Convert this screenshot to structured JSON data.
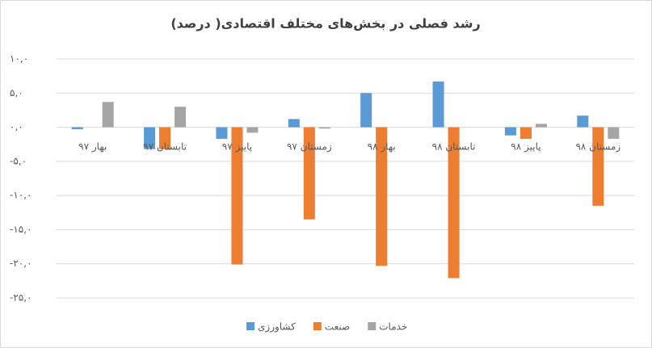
{
  "chart_data": {
    "type": "bar",
    "title": "رشد فصلی در بخش‌های مختلف اقتصادی( درصد)",
    "categories": [
      "بهار ۹۷",
      "تابستان ۹۷",
      "پاییز ۹۷",
      "زمستان ۹۷",
      "بهار ۹۸",
      "تابستان ۹۸",
      "پاییز ۹۸",
      "زمستان ۹۸"
    ],
    "series": [
      {
        "name": "کشاورزی",
        "color": "#5b9bd5",
        "values": [
          -0.3,
          -3.2,
          -1.7,
          1.2,
          5.0,
          6.7,
          -1.2,
          1.7
        ]
      },
      {
        "name": "صنعت",
        "color": "#ed7d31",
        "values": [
          0,
          -3.2,
          -20.1,
          -13.5,
          -20.3,
          -22.1,
          -1.7,
          -11.5
        ]
      },
      {
        "name": "خدمات",
        "color": "#a5a5a5",
        "values": [
          3.7,
          3.0,
          -0.8,
          -0.2,
          0,
          0,
          0.5,
          -1.7
        ]
      }
    ],
    "ylim": [
      -25,
      10
    ],
    "yticks": [
      {
        "value": 10,
        "label": "۱۰,۰"
      },
      {
        "value": 5,
        "label": "۵,۰"
      },
      {
        "value": 0,
        "label": "۰,۰"
      },
      {
        "value": -5,
        "label": "-۵,۰"
      },
      {
        "value": -10,
        "label": "-۱۰,۰"
      },
      {
        "value": -15,
        "label": "-۱۵,۰"
      },
      {
        "value": -20,
        "label": "-۲۰,۰"
      },
      {
        "value": -25,
        "label": "-۲۵,۰"
      }
    ],
    "grid": true
  }
}
